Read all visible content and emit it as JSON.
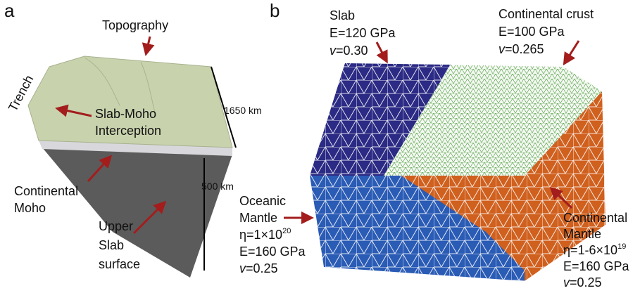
{
  "panel_a": {
    "label": "a",
    "topography": "Topography",
    "trench": "Trench",
    "slab_moho": [
      "Slab-Moho",
      "Interception"
    ],
    "continental_moho": [
      "Continental",
      "Moho"
    ],
    "upper_slab_surface": [
      "Upper",
      "Slab",
      "surface"
    ],
    "length_horizontal": "1650 km",
    "length_vertical": "500 km"
  },
  "panel_b": {
    "label": "b",
    "slab": {
      "name": "Slab",
      "modulus": "E=120 GPa",
      "poisson": {
        "symbol": "v",
        "value": "=0.30"
      }
    },
    "continental_crust": {
      "name": "Continental crust",
      "modulus": "E=100 GPa",
      "poisson": {
        "symbol": "v",
        "value": "=0.265"
      }
    },
    "oceanic_mantle": {
      "name": [
        "Oceanic",
        "Mantle"
      ],
      "viscosity": {
        "base": "η=1×10",
        "exponent": "20"
      },
      "modulus": "E=160 GPa",
      "poisson": {
        "symbol": "v",
        "value": "=0.25"
      }
    },
    "continental_mantle": {
      "name": [
        "Continental",
        "Mantle"
      ],
      "viscosity": {
        "base": "η=1-6×10",
        "exponent": "19"
      },
      "modulus": "E=160 GPa",
      "poisson": {
        "symbol": "v",
        "value": "=0.25"
      }
    }
  }
}
